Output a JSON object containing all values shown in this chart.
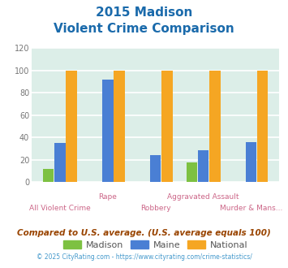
{
  "title_line1": "2015 Madison",
  "title_line2": "Violent Crime Comparison",
  "categories": [
    "All Violent Crime",
    "Rape",
    "Robbery",
    "Aggravated Assault",
    "Murder & Mans..."
  ],
  "madison": [
    12,
    0,
    0,
    18,
    0
  ],
  "maine": [
    35,
    92,
    24,
    29,
    36
  ],
  "national": [
    100,
    100,
    100,
    100,
    100
  ],
  "madison_color": "#7dc142",
  "maine_color": "#4a7fd4",
  "national_color": "#f5a623",
  "ylim": [
    0,
    120
  ],
  "yticks": [
    0,
    20,
    40,
    60,
    80,
    100,
    120
  ],
  "background_color": "#dceee8",
  "grid_color": "#ffffff",
  "title_color": "#1a6aab",
  "label_color": "#cc6688",
  "legend_labels": [
    "Madison",
    "Maine",
    "National"
  ],
  "footnote1": "Compared to U.S. average. (U.S. average equals 100)",
  "footnote2": "© 2025 CityRating.com - https://www.cityrating.com/crime-statistics/",
  "footnote1_color": "#994400",
  "footnote2_color": "#4499cc",
  "footnote2_prefix_color": "#888888"
}
